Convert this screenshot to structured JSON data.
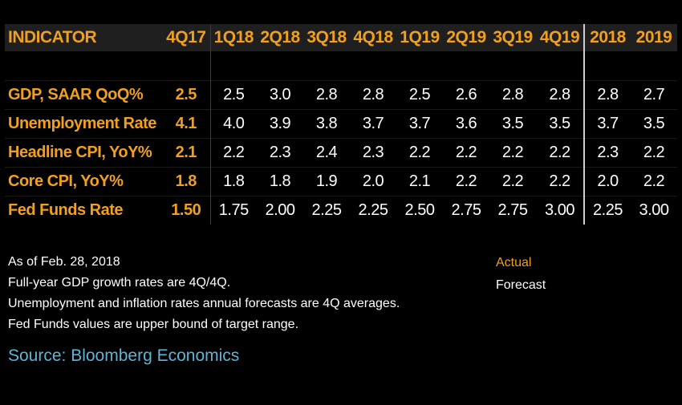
{
  "chart_data": {
    "type": "table",
    "header_label": "INDICATOR",
    "columns": [
      "4Q17",
      "1Q18",
      "2Q18",
      "3Q18",
      "4Q18",
      "1Q19",
      "2Q19",
      "3Q19",
      "4Q19",
      "2018",
      "2019"
    ],
    "rows": [
      {
        "label": "GDP, SAAR QoQ%",
        "values": [
          "2.5",
          "2.5",
          "3.0",
          "2.8",
          "2.8",
          "2.5",
          "2.6",
          "2.8",
          "2.8",
          "2.8",
          "2.7"
        ]
      },
      {
        "label": "Unemployment Rate",
        "values": [
          "4.1",
          "4.0",
          "3.9",
          "3.8",
          "3.7",
          "3.7",
          "3.6",
          "3.5",
          "3.5",
          "3.7",
          "3.5"
        ]
      },
      {
        "label": "Headline CPI, YoY%",
        "values": [
          "2.1",
          "2.2",
          "2.3",
          "2.4",
          "2.3",
          "2.2",
          "2.2",
          "2.2",
          "2.2",
          "2.3",
          "2.2"
        ]
      },
      {
        "label": "Core CPI, YoY%",
        "values": [
          "1.8",
          "1.8",
          "1.8",
          "1.9",
          "2.0",
          "2.1",
          "2.2",
          "2.2",
          "2.2",
          "2.0",
          "2.2"
        ]
      },
      {
        "label": "Fed Funds Rate",
        "values": [
          "1.50",
          "1.75",
          "2.00",
          "2.25",
          "2.25",
          "2.50",
          "2.75",
          "2.75",
          "3.00",
          "2.25",
          "3.00"
        ]
      }
    ],
    "actual_columns": [
      "4Q17"
    ]
  },
  "notes": [
    "As of Feb. 28, 2018",
    "Full-year GDP growth rates are 4Q/4Q.",
    "Unemployment and inflation rates annual forecasts are 4Q averages.",
    "Fed Funds values are upper bound of target range."
  ],
  "source": "Source: Bloomberg Economics",
  "legend": {
    "actual": "Actual",
    "forecast": "Forecast"
  },
  "colors": {
    "accent": "#f0a020",
    "source": "#5fb4d6",
    "header_bg": "#1f1f1f",
    "background": "#000000"
  }
}
